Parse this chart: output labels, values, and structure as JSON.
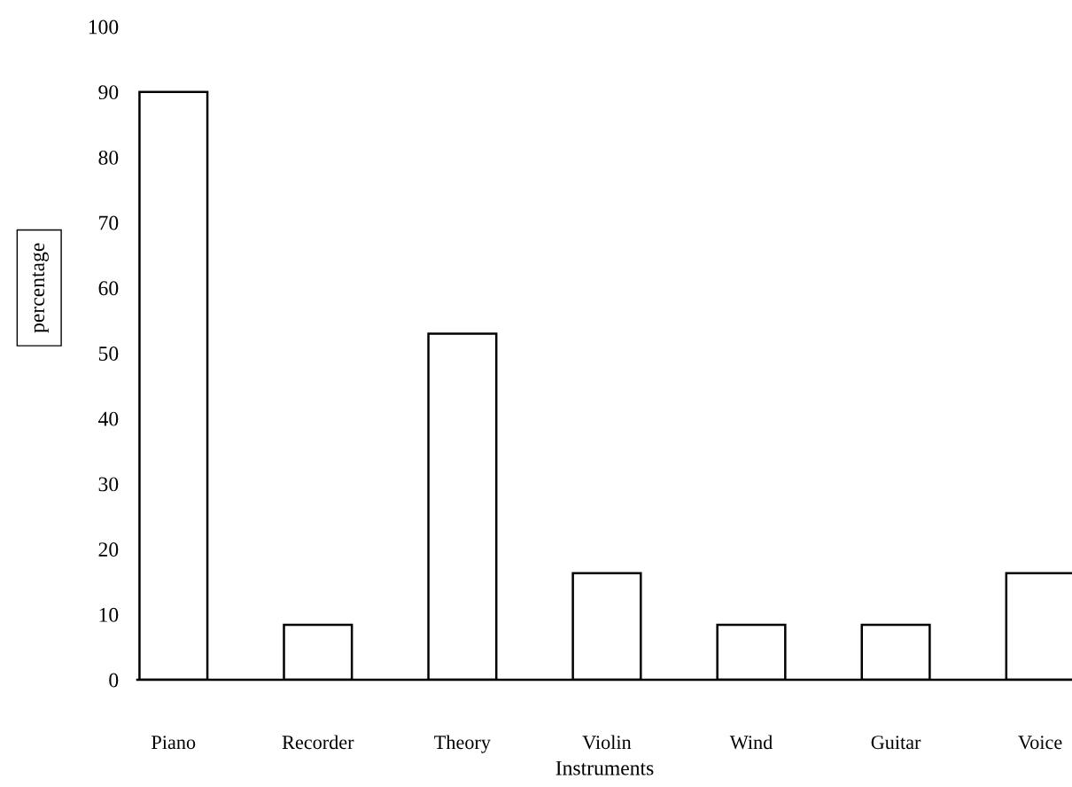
{
  "chart_data": {
    "type": "bar",
    "xlabel": "Instruments",
    "ylabel": "percentage",
    "categories": [
      "Piano",
      "Recorder",
      "Theory",
      "Violin",
      "Wind",
      "Guitar",
      "Voice"
    ],
    "values": [
      90,
      8.4,
      53,
      16.3,
      8.4,
      8.4,
      16.3
    ],
    "color": "#ffffff",
    "ylim": [
      0,
      100
    ],
    "yticks": [
      0,
      10,
      20,
      30,
      40,
      50,
      60,
      70,
      80,
      90,
      100
    ]
  }
}
